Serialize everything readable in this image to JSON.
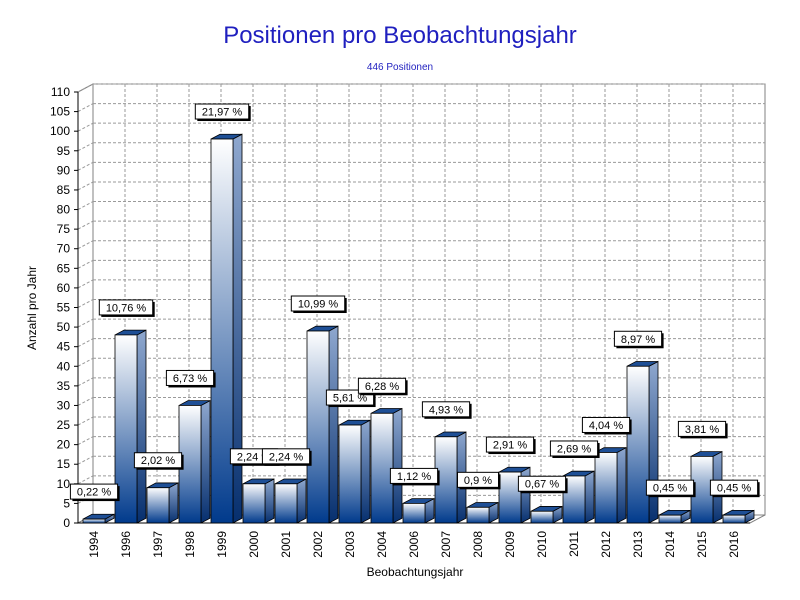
{
  "chart_data": {
    "type": "bar",
    "title": "Positionen pro Beobachtungsjahr",
    "subtitle": "446 Positionen",
    "xlabel": "Beobachtungsjahr",
    "ylabel": "Anzahl pro Jahr",
    "ylim": [
      0,
      110
    ],
    "ytick_step": 5,
    "grid": true,
    "categories": [
      "1994",
      "1996",
      "1997",
      "1998",
      "1999",
      "2000",
      "2001",
      "2002",
      "2003",
      "2004",
      "2006",
      "2007",
      "2008",
      "2009",
      "2010",
      "2011",
      "2012",
      "2013",
      "2014",
      "2015",
      "2016"
    ],
    "values": [
      1,
      48,
      9,
      30,
      98,
      10,
      10,
      49,
      25,
      28,
      5,
      22,
      4,
      13,
      3,
      12,
      18,
      40,
      2,
      17,
      2
    ],
    "data_labels": [
      "0,22 %",
      "10,76 %",
      "2,02 %",
      "6,73 %",
      "21,97 %",
      "2,24 %",
      "2,24 %",
      "10,99 %",
      "5,61 %",
      "6,28 %",
      "1,12 %",
      "4,93 %",
      "0,9 %",
      "2,91 %",
      "0,67 %",
      "2,69 %",
      "4,04 %",
      "8,97 %",
      "0,45 %",
      "3,81 %",
      "0,45 %"
    ],
    "colors": {
      "bar_top": "#ffffff",
      "bar_bottom": "#003a8c",
      "side": "#1e4f96",
      "title": "#1f1fbf"
    }
  }
}
